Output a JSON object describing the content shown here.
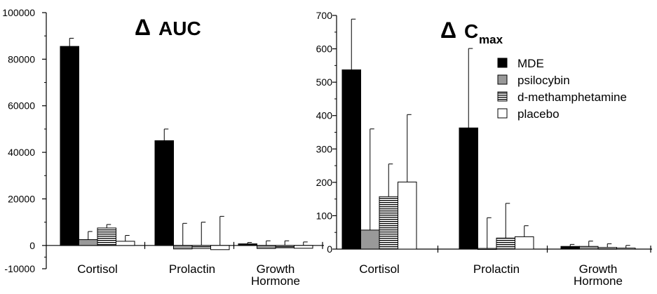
{
  "legend": {
    "items": [
      {
        "label": "MDE",
        "pattern": "solid"
      },
      {
        "label": "psilocybin",
        "pattern": "gray"
      },
      {
        "label": "d-methamphetamine",
        "pattern": "hatch"
      },
      {
        "label": "placebo",
        "pattern": "white"
      }
    ]
  },
  "colors": {
    "mde": "#000000",
    "psilocybin": "#999999",
    "hatch": "#000000",
    "placebo": "#ffffff"
  },
  "chart_data": [
    {
      "type": "bar",
      "title_symbol": "Δ",
      "title": "AUC",
      "categories": [
        [
          "Cortisol"
        ],
        [
          "Prolactin"
        ],
        [
          "Growth",
          "Hormone"
        ]
      ],
      "ylim": [
        -10000,
        100000
      ],
      "yticks": [
        -10000,
        0,
        20000,
        40000,
        60000,
        80000,
        100000
      ],
      "ytick_labels": [
        "-10000",
        "0",
        "20000",
        "40000",
        "60000",
        "80000",
        "100000"
      ],
      "series": [
        {
          "name": "MDE",
          "values": [
            85500,
            45000,
            700
          ],
          "errors": [
            3500,
            5000,
            600
          ]
        },
        {
          "name": "psilocybin",
          "values": [
            2500,
            -1500,
            -1300
          ],
          "errors": [
            3500,
            9500,
            2000
          ]
        },
        {
          "name": "d-methamphetamine",
          "values": [
            7500,
            -1300,
            -1000
          ],
          "errors": [
            1500,
            10000,
            2000
          ]
        },
        {
          "name": "placebo",
          "values": [
            1800,
            -1800,
            -1200
          ],
          "errors": [
            2500,
            12500,
            1500
          ]
        }
      ]
    },
    {
      "type": "bar",
      "title_symbol": "Δ",
      "title": "C",
      "title_sub": "max",
      "categories": [
        [
          "Cortisol"
        ],
        [
          "Prolactin"
        ],
        [
          "Growth",
          "Hormone"
        ]
      ],
      "ylim": [
        0,
        700
      ],
      "yticks": [
        0,
        100,
        200,
        300,
        400,
        500,
        600,
        700
      ],
      "ytick_labels": [
        "0",
        "100",
        "200",
        "300",
        "400",
        "500",
        "600",
        "700"
      ],
      "series": [
        {
          "name": "MDE",
          "values": [
            537,
            363,
            8
          ],
          "errors": [
            152,
            238,
            6
          ]
        },
        {
          "name": "psilocybin",
          "values": [
            57,
            2,
            8
          ],
          "errors": [
            303,
            92,
            16
          ]
        },
        {
          "name": "d-methamphetamine",
          "values": [
            157,
            33,
            5
          ],
          "errors": [
            98,
            104,
            11
          ]
        },
        {
          "name": "placebo",
          "values": [
            201,
            37,
            3
          ],
          "errors": [
            202,
            33,
            8
          ]
        }
      ]
    }
  ]
}
